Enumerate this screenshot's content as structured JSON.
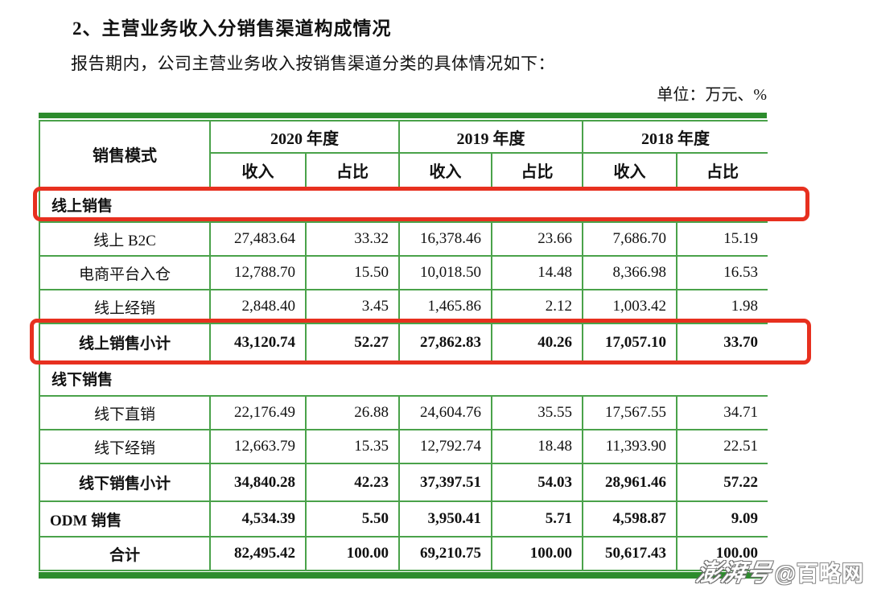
{
  "page": {
    "heading": "2、主营业务收入分销售渠道构成情况",
    "intro": "报告期内，公司主营业务收入按销售渠道分类的具体情况如下：",
    "unit_label": "单位：万元、%"
  },
  "table": {
    "col1_header": "销售模式",
    "year_headers": [
      "2020 年度",
      "2019 年度",
      "2018 年度"
    ],
    "sub_headers": {
      "income": "收入",
      "share": "占比"
    },
    "rows": [
      {
        "kind": "section",
        "label": "线上销售",
        "values": null
      },
      {
        "kind": "detail",
        "label": "线上 B2C",
        "values": [
          "27,483.64",
          "33.32",
          "16,378.46",
          "23.66",
          "7,686.70",
          "15.19"
        ]
      },
      {
        "kind": "detail",
        "label": "电商平台入仓",
        "values": [
          "12,788.70",
          "15.50",
          "10,018.50",
          "14.48",
          "8,366.98",
          "16.53"
        ]
      },
      {
        "kind": "detail",
        "label": "线上经销",
        "values": [
          "2,848.40",
          "3.45",
          "1,465.86",
          "2.12",
          "1,003.42",
          "1.98"
        ]
      },
      {
        "kind": "subtotal",
        "label": "线上销售小计",
        "values": [
          "43,120.74",
          "52.27",
          "27,862.83",
          "40.26",
          "17,057.10",
          "33.70"
        ]
      },
      {
        "kind": "section",
        "label": "线下销售",
        "values": null
      },
      {
        "kind": "detail",
        "label": "线下直销",
        "values": [
          "22,176.49",
          "26.88",
          "24,604.76",
          "35.55",
          "17,567.55",
          "34.71"
        ]
      },
      {
        "kind": "detail",
        "label": "线下经销",
        "values": [
          "12,663.79",
          "15.35",
          "12,792.74",
          "18.48",
          "11,393.90",
          "22.51"
        ]
      },
      {
        "kind": "subtotal",
        "label": "线下销售小计",
        "values": [
          "34,840.28",
          "42.23",
          "37,397.51",
          "54.03",
          "28,961.46",
          "57.22"
        ]
      },
      {
        "kind": "odm",
        "label": "ODM 销售",
        "values": [
          "4,534.39",
          "5.50",
          "3,950.41",
          "5.71",
          "4,598.87",
          "9.09"
        ]
      },
      {
        "kind": "total",
        "label": "合计",
        "values": [
          "82,495.42",
          "100.00",
          "69,210.75",
          "100.00",
          "50,617.43",
          "100.00"
        ]
      }
    ]
  },
  "highlights": {
    "online_sales_row": "线上销售",
    "online_subtotal_row": "线上销售小计"
  },
  "watermark": {
    "logo": "澎湃号",
    "handle": "@百略网"
  },
  "colors": {
    "table_border_green": "#4aa24a",
    "band_green": "#2d8c2d",
    "highlight_red": "#e7301f",
    "text": "#111111"
  }
}
